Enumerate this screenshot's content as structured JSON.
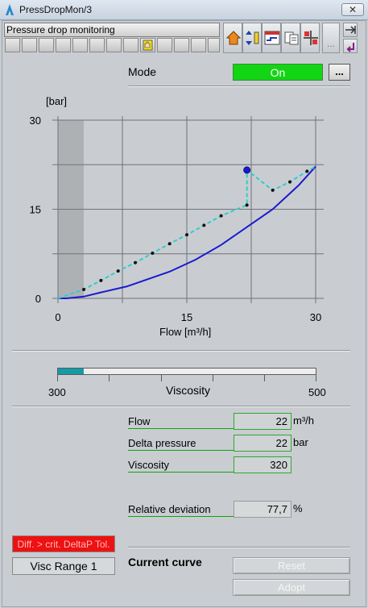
{
  "window": {
    "title": "PressDropMon/3",
    "close_glyph": "✕"
  },
  "header": {
    "title": "Pressure drop monitoring"
  },
  "toolbar": {
    "more_label": "..."
  },
  "mode": {
    "label": "Mode",
    "value": "On",
    "dots_label": "..."
  },
  "chart_data": {
    "type": "line",
    "ylabel": "[bar]",
    "xlabel": "Flow [m³/h]",
    "xlim": [
      0,
      30
    ],
    "ylim": [
      0,
      30
    ],
    "x_ticks": [
      "0",
      "15",
      "30"
    ],
    "y_ticks": [
      "0",
      "15",
      "30"
    ],
    "grid": true,
    "shaded_x_range": [
      0,
      3
    ],
    "series": [
      {
        "style": "solid",
        "color": "#1a1ad0",
        "points": [
          [
            0,
            0
          ],
          [
            1,
            0
          ],
          [
            3,
            0.3
          ],
          [
            5,
            1
          ],
          [
            8,
            2
          ],
          [
            10,
            3
          ],
          [
            13,
            4.5
          ],
          [
            16,
            6.5
          ],
          [
            19,
            9
          ],
          [
            22,
            12
          ],
          [
            25,
            15
          ],
          [
            28,
            19
          ],
          [
            30,
            22.2
          ]
        ]
      },
      {
        "style": "dashed",
        "color": "#33cccc",
        "points": [
          [
            0,
            0
          ],
          [
            3,
            1.5
          ],
          [
            5,
            3
          ],
          [
            7,
            4.6
          ],
          [
            9,
            6
          ],
          [
            11,
            7.6
          ],
          [
            13,
            9.2
          ],
          [
            15,
            10.7
          ],
          [
            17,
            12.3
          ],
          [
            19,
            13.9
          ],
          [
            22,
            15.7
          ],
          [
            22,
            21.6
          ],
          [
            25,
            18.2
          ],
          [
            27,
            19.6
          ],
          [
            29,
            21.4
          ],
          [
            30,
            22.2
          ]
        ]
      }
    ],
    "markers": [
      [
        3,
        1.5
      ],
      [
        5,
        3
      ],
      [
        7,
        4.6
      ],
      [
        9,
        6
      ],
      [
        11,
        7.6
      ],
      [
        13,
        9.2
      ],
      [
        15,
        10.7
      ],
      [
        17,
        12.3
      ],
      [
        19,
        13.9
      ],
      [
        22,
        15.7
      ],
      [
        25,
        18.2
      ],
      [
        27,
        19.6
      ],
      [
        29,
        21.4
      ]
    ],
    "current_point": [
      22,
      21.6
    ]
  },
  "viscosity": {
    "label": "Viscosity",
    "min": "300",
    "max": "500",
    "fill_fraction": 0.1
  },
  "values": {
    "flow": {
      "label": "Flow",
      "value": "22",
      "unit": "m³/h"
    },
    "delta_pressure": {
      "label": "Delta pressure",
      "value": "22",
      "unit": "bar"
    },
    "viscosity": {
      "label": "Viscosity",
      "value": "320"
    },
    "relative_deviation": {
      "label": "Relative deviation",
      "value": "77,7",
      "unit": "%"
    }
  },
  "status": {
    "alarm": "Diff. > crit. DeltaP Tol.",
    "visc_range": "Visc Range 1"
  },
  "curve": {
    "label": "Current curve",
    "reset_label": "Reset",
    "adopt_label": "Adopt"
  },
  "colors": {
    "mode_on": "#12d514",
    "alarm": "#ee1111",
    "curve": "#1a1ad0",
    "measured": "#33cccc",
    "visc_fill": "#159aa6"
  }
}
